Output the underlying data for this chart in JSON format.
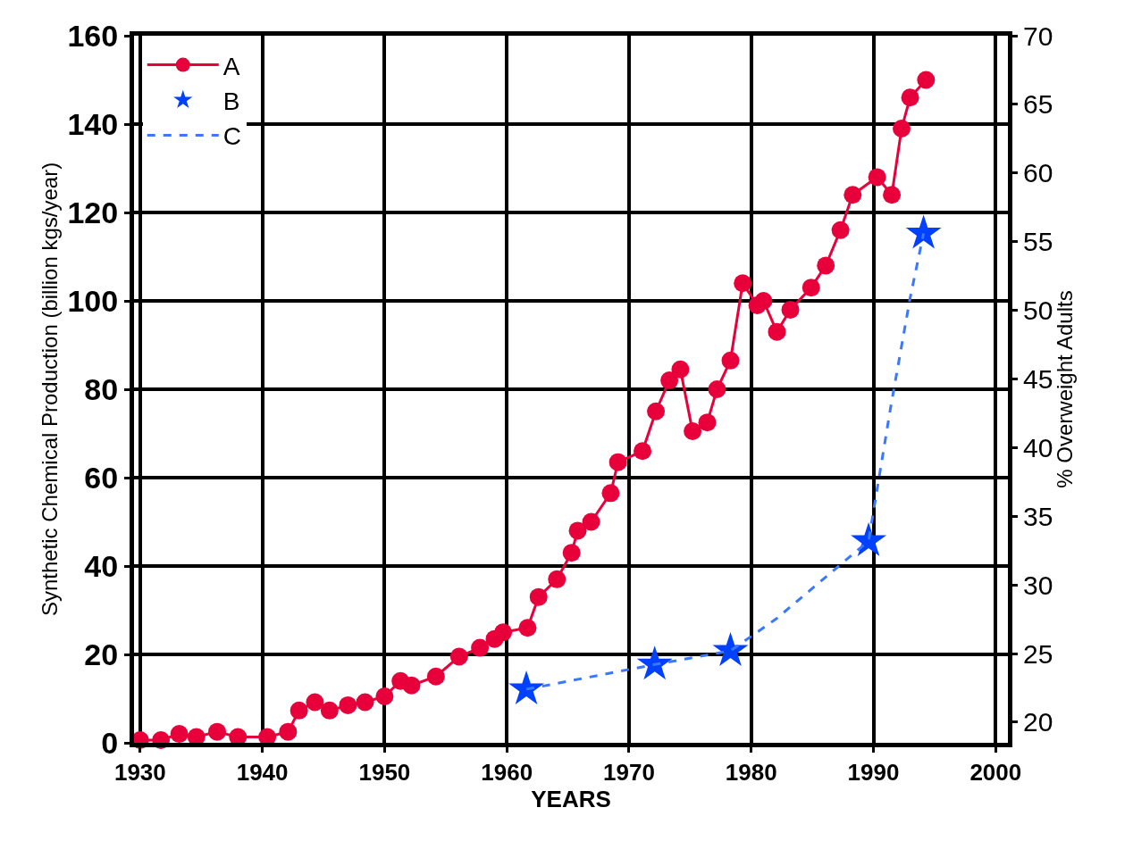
{
  "chart_data": {
    "type": "line",
    "xlabel": "YEARS",
    "ylabel": "Synthetic Chemical Production (billion kgs/year)",
    "y2label": "% Overweight Adults",
    "xlim": [
      1929.5,
      2001
    ],
    "xticks": [
      1930,
      1940,
      1950,
      1960,
      1970,
      1980,
      1990,
      2000
    ],
    "ylim": [
      0,
      160
    ],
    "yticks": [
      0,
      20,
      40,
      60,
      80,
      100,
      120,
      140,
      160
    ],
    "y2lim": [
      18.5,
      70
    ],
    "y2ticks": [
      20,
      25,
      30,
      35,
      40,
      45,
      50,
      55,
      60,
      65,
      70
    ],
    "grid": true,
    "legend": "top left",
    "series": [
      {
        "name": "A",
        "marker": "circle",
        "line_style": "solid",
        "color": "#e8003a",
        "x": [
          1930,
          1931.7,
          1933.2,
          1934.6,
          1936.3,
          1938,
          1940.4,
          1942.1,
          1943,
          1944.3,
          1945.5,
          1947,
          1948.4,
          1950,
          1951.3,
          1952.2,
          1954.2,
          1956.1,
          1957.8,
          1959,
          1959.7,
          1961.7,
          1962.6,
          1964.1,
          1965.3,
          1965.8,
          1966.9,
          1968.5,
          1969.1,
          1971.1,
          1972.2,
          1973.3,
          1974.2,
          1975.2,
          1976.4,
          1977.2,
          1978.3,
          1979.3,
          1980.5,
          1981,
          1982.1,
          1983.2,
          1984.9,
          1986.1,
          1987.3,
          1988.3,
          1990.3,
          1991.5,
          1992.3,
          1993,
          1994.3
        ],
        "values": [
          0.6,
          0.6,
          2,
          1.3,
          2.5,
          1.3,
          1.3,
          2.5,
          7.3,
          9.2,
          7.3,
          8.5,
          9.2,
          10.5,
          14,
          13,
          15,
          19.5,
          21.5,
          23.5,
          25,
          26,
          33,
          37,
          43,
          48,
          50,
          56.5,
          63.5,
          66,
          75,
          82,
          84.5,
          70.5,
          72.5,
          80,
          86.5,
          104,
          99,
          100,
          93,
          98,
          103,
          108,
          116,
          124,
          128,
          124,
          139,
          146,
          150
        ]
      },
      {
        "name": "B",
        "type": "scatter",
        "axis": "y2",
        "marker": "star",
        "color": "#0040ff",
        "x": [
          1961.6,
          1972.1,
          1978.3,
          1989.6,
          1994.1
        ],
        "values": [
          22.4,
          24.2,
          25.2,
          33.2,
          55.6
        ]
      },
      {
        "name": "C",
        "type": "line",
        "axis": "y2",
        "marker": "none",
        "line_style": "dashed",
        "color": "#3a78ff",
        "x": [
          1961.6,
          1972.1,
          1978.3,
          1982,
          1989.6,
          1991.4,
          1993,
          1994.1
        ],
        "values": [
          22.4,
          24.2,
          25.2,
          27.5,
          33.2,
          42.9,
          50.9,
          55.6
        ]
      }
    ]
  }
}
